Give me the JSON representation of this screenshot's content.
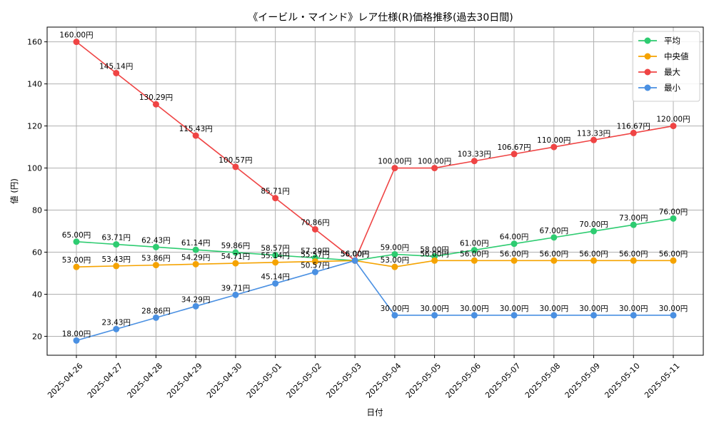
{
  "chart_data": {
    "type": "line",
    "title": "《イービル・マインド》レア仕様(R)価格推移(過去30日間)",
    "xlabel": "日付",
    "ylabel": "値 (円)",
    "x": [
      "2025-04-26",
      "2025-04-27",
      "2025-04-28",
      "2025-04-29",
      "2025-04-30",
      "2025-05-01",
      "2025-05-02",
      "2025-05-03",
      "2025-05-04",
      "2025-05-05",
      "2025-05-06",
      "2025-05-07",
      "2025-05-08",
      "2025-05-09",
      "2025-05-10",
      "2025-05-11"
    ],
    "ylim": [
      11,
      167
    ],
    "yticks": [
      20,
      40,
      60,
      80,
      100,
      120,
      140,
      160
    ],
    "grid": true,
    "legend_position": "top-right",
    "value_suffix": "円",
    "series": [
      {
        "name": "平均",
        "color": "#2ecc71",
        "values": [
          65.0,
          63.71,
          62.43,
          61.14,
          59.86,
          58.57,
          57.29,
          56.0,
          59.0,
          58.0,
          61.0,
          64.0,
          67.0,
          70.0,
          73.0,
          76.0
        ]
      },
      {
        "name": "中央値",
        "color": "#f5a300",
        "values": [
          53.0,
          53.43,
          53.86,
          54.29,
          54.71,
          55.14,
          55.57,
          56.0,
          53.0,
          56.0,
          56.0,
          56.0,
          56.0,
          56.0,
          56.0,
          56.0
        ]
      },
      {
        "name": "最大",
        "color": "#ef4444",
        "values": [
          160.0,
          145.14,
          130.29,
          115.43,
          100.57,
          85.71,
          70.86,
          56.0,
          100.0,
          100.0,
          103.33,
          106.67,
          110.0,
          113.33,
          116.67,
          120.0
        ]
      },
      {
        "name": "最小",
        "color": "#4a90e2",
        "values": [
          18.0,
          23.43,
          28.86,
          34.29,
          39.71,
          45.14,
          50.57,
          56.0,
          30.0,
          30.0,
          30.0,
          30.0,
          30.0,
          30.0,
          30.0,
          30.0
        ]
      }
    ]
  }
}
